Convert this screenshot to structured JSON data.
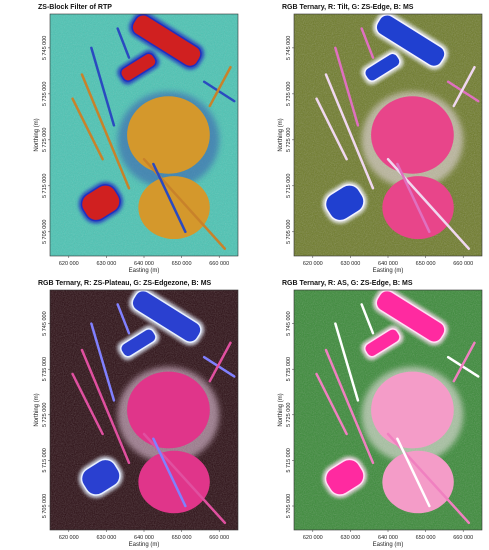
{
  "panels": [
    {
      "title": "ZS-Block Filter of RTP",
      "x_label": "Easting (m)",
      "y_label": "Northing (m)",
      "xticks": [
        "620 000",
        "630 000",
        "640 000",
        "650 000",
        "660 000"
      ],
      "yticks": [
        "5 745 000",
        "5 735 000",
        "5 725 000",
        "5 715 000",
        "5 705 000"
      ]
    },
    {
      "title": "RGB Ternary, R: Tilt, G: ZS-Edge, B: MS",
      "x_label": "Easting (m)",
      "y_label": "Northing (m)",
      "xticks": [
        "620 000",
        "630 000",
        "640 000",
        "650 000",
        "660 000"
      ],
      "yticks": [
        "5 745 000",
        "5 735 000",
        "5 725 000",
        "5 715 000",
        "5 705 000"
      ]
    },
    {
      "title": "RGB Ternary, R: ZS-Plateau, G: ZS-Edgezone, B: MS",
      "x_label": "Easting (m)",
      "y_label": "Northing (m)",
      "xticks": [
        "620 000",
        "630 000",
        "640 000",
        "650 000",
        "660 000"
      ],
      "yticks": [
        "5 745 000",
        "5 735 000",
        "5 725 000",
        "5 715 000",
        "5 705 000"
      ]
    },
    {
      "title": "RGB Ternary, R: AS, G: ZS-Edge, B: MS",
      "x_label": "Easting (m)",
      "y_label": "Northing (m)",
      "xticks": [
        "620 000",
        "630 000",
        "640 000",
        "650 000",
        "660 000"
      ],
      "yticks": [
        "5 745 000",
        "5 735 000",
        "5 725 000",
        "5 715 000",
        "5 705 000"
      ]
    }
  ]
}
